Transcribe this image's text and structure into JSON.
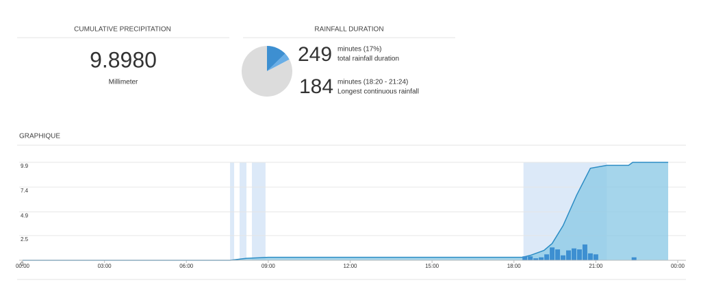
{
  "precipitation": {
    "title": "CUMULATIVE PRECIPITATION",
    "value": "9.8980",
    "unit": "Millimeter"
  },
  "duration": {
    "title": "RAINFALL DURATION",
    "stats": [
      {
        "value": 249,
        "detail": "minutes (17%)",
        "label": "total rainfall duration"
      },
      {
        "value": 184,
        "detail": "minutes (18:20 - 21:24)",
        "label": "Longest continuous rainfall"
      }
    ]
  },
  "section_title": "GRAPHIQUE",
  "chart_data": [
    {
      "type": "pie",
      "categories": [
        null,
        null,
        null
      ],
      "values": [
        184,
        65,
        1191
      ],
      "colors": [
        "#3d8fd1",
        "#6aaee6",
        "#dcdcdc"
      ]
    },
    {
      "type": "area",
      "xlim": [
        0,
        24
      ],
      "ylim": [
        0,
        9.9
      ],
      "xticks": [
        {
          "value": 0,
          "label": "00:00"
        },
        {
          "value": 3,
          "label": "03:00"
        },
        {
          "value": 6,
          "label": "06:00"
        },
        {
          "value": 9,
          "label": "09:00"
        },
        {
          "value": 12,
          "label": "12:00"
        },
        {
          "value": 15,
          "label": "15:00"
        },
        {
          "value": 18,
          "label": "18:00"
        },
        {
          "value": 21,
          "label": "21:00"
        },
        {
          "value": 24,
          "label": "00:00"
        }
      ],
      "yticks": [
        0,
        2.5,
        4.9,
        7.4,
        9.9
      ],
      "grid": true,
      "periods": [
        {
          "start": 7.6,
          "end": 7.75
        },
        {
          "start": 7.95,
          "end": 8.2
        },
        {
          "start": 8.4,
          "end": 8.9
        },
        {
          "start": 18.35,
          "end": 21.4
        }
      ],
      "period_color": "#dce9f8",
      "series": [
        {
          "kind": "area",
          "color": "#2b8cc4",
          "fill": "#8fcbe6",
          "x": [
            0,
            7.6,
            8.2,
            9.0,
            18.3,
            18.6,
            19.1,
            19.4,
            19.8,
            20.3,
            20.8,
            21.4,
            22.2,
            22.35,
            23.65
          ],
          "values": [
            0,
            0,
            0.2,
            0.3,
            0.3,
            0.5,
            1.0,
            1.7,
            3.5,
            6.6,
            9.3,
            9.6,
            9.6,
            9.9,
            9.9
          ]
        },
        {
          "kind": "bar",
          "color": "#3d8fd1",
          "x": [
            18.4,
            18.6,
            18.8,
            19.0,
            19.2,
            19.4,
            19.6,
            19.8,
            20.0,
            20.2,
            20.4,
            20.6,
            20.8,
            21.0,
            22.4
          ],
          "values": [
            0.4,
            0.4,
            0.2,
            0.3,
            0.6,
            1.3,
            1.1,
            0.5,
            1.0,
            1.2,
            1.1,
            1.6,
            0.7,
            0.6,
            0.3
          ]
        }
      ]
    }
  ]
}
